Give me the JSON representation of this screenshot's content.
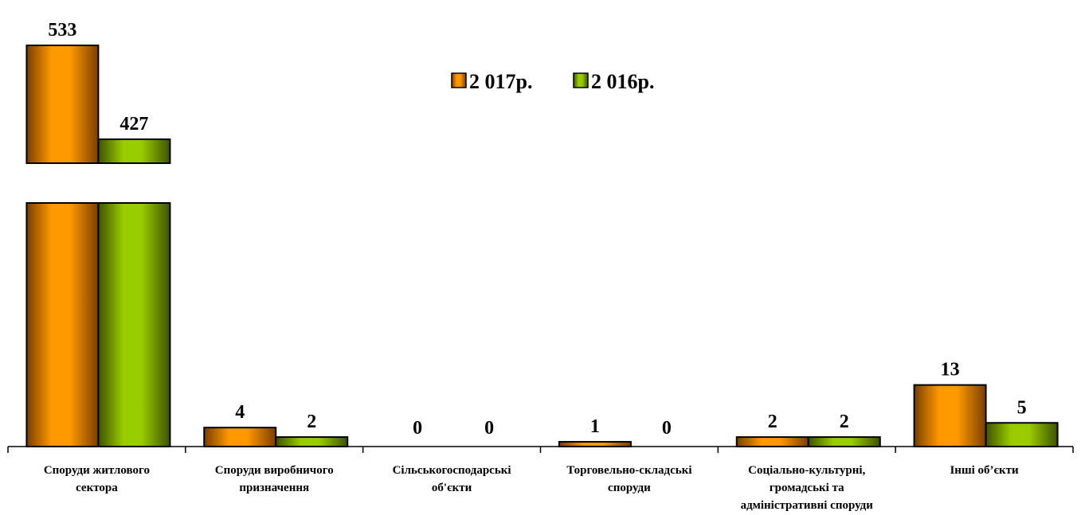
{
  "chart_data": {
    "type": "bar",
    "categories": [
      [
        "Споруди житлового",
        "сектора"
      ],
      [
        "Споруди  виробничого",
        "призначення"
      ],
      [
        "Сільськогосподарські",
        "об'єкти"
      ],
      [
        "Торговельно-складські",
        "споруди"
      ],
      [
        "Соціально-культурні,",
        "громадські та",
        "адміністративні споруди"
      ],
      [
        "Інші об’єкти"
      ]
    ],
    "series": [
      {
        "name": "2 017р.",
        "values": [
          533,
          4,
          0,
          1,
          2,
          13
        ],
        "color": "#FF9900",
        "dark": "#7A3E00"
      },
      {
        "name": "2 016р.",
        "values": [
          427,
          2,
          0,
          0,
          2,
          5
        ],
        "color": "#99CC00",
        "dark": "#3E5200"
      }
    ],
    "axis_break": true,
    "legend_position": "top-center",
    "grid": false
  }
}
